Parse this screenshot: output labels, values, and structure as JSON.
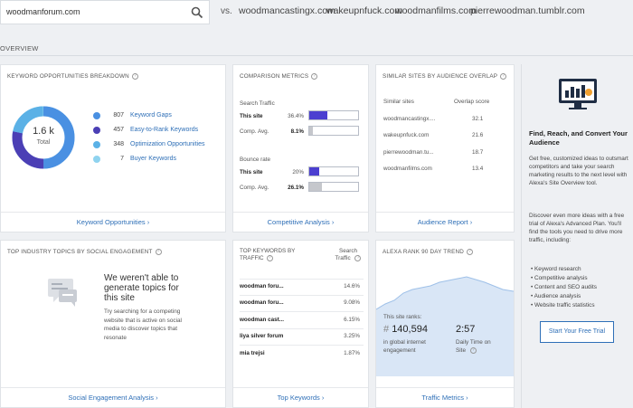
{
  "search": {
    "value": "woodmanforum.com"
  },
  "compare": {
    "vs_label": "vs.",
    "sites": [
      "woodmancastingx.com",
      "wakeupnfuck.com",
      "woodmanfilms.com",
      "pierrewoodman.tumblr.com"
    ]
  },
  "overview_label": "OVERVIEW",
  "keyword_card": {
    "title": "KEYWORD OPPORTUNITIES BREAKDOWN",
    "total_value": "1.6 k",
    "total_label": "Total",
    "items": [
      {
        "count": "807",
        "label": "Keyword Gaps",
        "color": "#4a90e2"
      },
      {
        "count": "457",
        "label": "Easy-to-Rank Keywords",
        "color": "#4b3fb5"
      },
      {
        "count": "348",
        "label": "Optimization Opportunities",
        "color": "#5bb1e6"
      },
      {
        "count": "7",
        "label": "Buyer Keywords",
        "color": "#8fd3ef"
      }
    ],
    "footer": "Keyword Opportunities ›"
  },
  "comparison_card": {
    "title": "COMPARISON METRICS",
    "search_traffic": {
      "label": "Search Traffic",
      "this_label": "This site",
      "this_value": "36.4%",
      "this_fraction": 0.364,
      "avg_label": "Comp. Avg.",
      "avg_value": "8.1%",
      "avg_fraction": 0.081
    },
    "bounce_rate": {
      "label": "Bounce rate",
      "this_label": "This site",
      "this_value": "20%",
      "this_fraction": 0.2,
      "avg_label": "Comp. Avg.",
      "avg_value": "26.1%",
      "avg_fraction": 0.261
    },
    "footer": "Competitive Analysis ›"
  },
  "similar_card": {
    "title": "SIMILAR SITES BY AUDIENCE OVERLAP",
    "col_site": "Similar sites",
    "col_score": "Overlap score",
    "rows": [
      {
        "site": "woodmancastingx....",
        "score": "32.1"
      },
      {
        "site": "wakeupnfuck.com",
        "score": "21.6"
      },
      {
        "site": "pierrewoodman.tu...",
        "score": "18.7"
      },
      {
        "site": "woodmanfilms.com",
        "score": "13.4"
      }
    ],
    "footer": "Audience Report ›"
  },
  "topics_card": {
    "title": "TOP INDUSTRY TOPICS BY SOCIAL ENGAGEMENT",
    "heading": "We weren't able to generate topics for this site",
    "body": "Try searching for a competing website that is active on social media to discover topics that resonate",
    "footer": "Social Engagement Analysis ›"
  },
  "topkw_card": {
    "title": "TOP KEYWORDS BY TRAFFIC",
    "col_right": "Search Traffic",
    "rows": [
      {
        "kw": "woodman foru...",
        "pct": "14.6%"
      },
      {
        "kw": "woodman foru...",
        "pct": "9.08%"
      },
      {
        "kw": "woodman cast...",
        "pct": "6.15%"
      },
      {
        "kw": "liya silver forum",
        "pct": "3.25%"
      },
      {
        "kw": "mia trejsi",
        "pct": "1.87%"
      }
    ],
    "footer": "Top Keywords ›"
  },
  "rank_card": {
    "title": "ALEXA RANK 90 DAY TREND",
    "site_ranks_label": "This site ranks:",
    "rank_value": "140,594",
    "rank_prefix": "#",
    "rank_caption": "in global internet engagement",
    "time_value": "2:57",
    "time_caption": "Daily Time on Site",
    "footer": "Traffic Metrics ›"
  },
  "sidebar": {
    "heading": "Find, Reach, and Convert Your Audience",
    "para1": "Get free, customized ideas to outsmart competitors and take your search marketing results to the next level with Alexa's Site Overview tool.",
    "para2": "Discover even more ideas with a free trial of Alexa's Advanced Plan. You'll find the tools you need to drive more traffic, including:",
    "bullets": [
      "Keyword research",
      "Competitive analysis",
      "Content and SEO audits",
      "Audience analysis",
      "Website traffic statistics"
    ],
    "button": "Start Your Free Trial"
  },
  "colors": {
    "link": "#2e6fb7",
    "bar_blue": "#4b3fd0",
    "bar_grey": "#c5c7cc",
    "accent_orange": "#f0a030"
  }
}
